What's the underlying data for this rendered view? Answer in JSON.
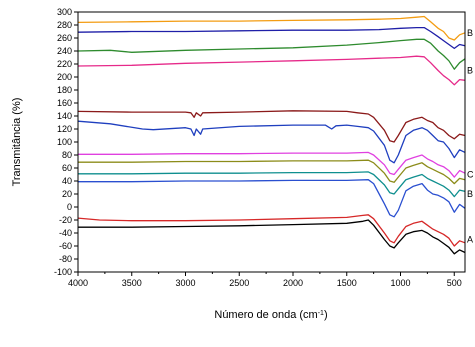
{
  "chart_data": {
    "type": "line",
    "title": "",
    "xlabel": "Número de onda (cm",
    "xlabel_sup": "-1",
    "xlabel_end": ")",
    "ylabel": "Transmitância (%)",
    "xlim": [
      4000,
      400
    ],
    "ylim": [
      -100,
      300
    ],
    "reversed_x": true,
    "grid": false,
    "x_ticks": [
      4000,
      3500,
      3000,
      2500,
      2000,
      1500,
      1000,
      500
    ],
    "y_ticks": [
      -100,
      -80,
      -60,
      -40,
      -20,
      0,
      20,
      40,
      60,
      80,
      100,
      120,
      140,
      160,
      180,
      200,
      220,
      240,
      260,
      280,
      300
    ],
    "edge_labels": [
      {
        "text": "B",
        "x": 400,
        "y": 268
      },
      {
        "text": "B",
        "x": 400,
        "y": 210
      },
      {
        "text": "C",
        "x": 400,
        "y": 50
      },
      {
        "text": "B",
        "x": 400,
        "y": 20
      },
      {
        "text": "A",
        "x": 400,
        "y": -50
      }
    ],
    "series": [
      {
        "color": "#f39c12",
        "points": [
          [
            4000,
            284
          ],
          [
            3500,
            285
          ],
          [
            3000,
            286
          ],
          [
            2500,
            286
          ],
          [
            2000,
            287
          ],
          [
            1500,
            288
          ],
          [
            1200,
            289
          ],
          [
            1000,
            290
          ],
          [
            850,
            292
          ],
          [
            780,
            293
          ],
          [
            720,
            285
          ],
          [
            650,
            275
          ],
          [
            600,
            270
          ],
          [
            550,
            260
          ],
          [
            500,
            257
          ],
          [
            450,
            265
          ],
          [
            400,
            268
          ]
        ]
      },
      {
        "color": "#1f1fa8",
        "points": [
          [
            4000,
            269
          ],
          [
            3500,
            270
          ],
          [
            3000,
            270
          ],
          [
            2500,
            271
          ],
          [
            2000,
            272
          ],
          [
            1500,
            272
          ],
          [
            1200,
            273
          ],
          [
            1000,
            275
          ],
          [
            850,
            276
          ],
          [
            780,
            276
          ],
          [
            720,
            270
          ],
          [
            650,
            262
          ],
          [
            600,
            256
          ],
          [
            550,
            250
          ],
          [
            500,
            244
          ],
          [
            450,
            250
          ],
          [
            400,
            248
          ]
        ]
      },
      {
        "color": "#2e8b2e",
        "points": [
          [
            4000,
            240
          ],
          [
            3700,
            241
          ],
          [
            3500,
            238
          ],
          [
            3000,
            241
          ],
          [
            2500,
            243
          ],
          [
            2000,
            245
          ],
          [
            1500,
            249
          ],
          [
            1200,
            253
          ],
          [
            1000,
            256
          ],
          [
            850,
            258
          ],
          [
            780,
            258
          ],
          [
            720,
            252
          ],
          [
            650,
            240
          ],
          [
            600,
            233
          ],
          [
            550,
            225
          ],
          [
            500,
            212
          ],
          [
            450,
            222
          ],
          [
            400,
            228
          ]
        ]
      },
      {
        "color": "#e62a8a",
        "points": [
          [
            4000,
            217
          ],
          [
            3500,
            218
          ],
          [
            3000,
            221
          ],
          [
            2500,
            223
          ],
          [
            2000,
            225
          ],
          [
            1500,
            227
          ],
          [
            1200,
            229
          ],
          [
            1000,
            230
          ],
          [
            850,
            232
          ],
          [
            780,
            231
          ],
          [
            720,
            222
          ],
          [
            650,
            210
          ],
          [
            600,
            202
          ],
          [
            550,
            196
          ],
          [
            500,
            188
          ],
          [
            450,
            196
          ],
          [
            400,
            195
          ]
        ]
      },
      {
        "color": "#8b1a1a",
        "points": [
          [
            4000,
            147
          ],
          [
            3500,
            146
          ],
          [
            3000,
            146
          ],
          [
            2950,
            145
          ],
          [
            2920,
            138
          ],
          [
            2900,
            145
          ],
          [
            2860,
            140
          ],
          [
            2840,
            145
          ],
          [
            2500,
            146
          ],
          [
            2000,
            148
          ],
          [
            1500,
            147
          ],
          [
            1400,
            145
          ],
          [
            1300,
            143
          ],
          [
            1250,
            138
          ],
          [
            1150,
            118
          ],
          [
            1100,
            102
          ],
          [
            1060,
            100
          ],
          [
            1020,
            110
          ],
          [
            950,
            130
          ],
          [
            880,
            135
          ],
          [
            800,
            138
          ],
          [
            750,
            133
          ],
          [
            700,
            130
          ],
          [
            650,
            122
          ],
          [
            600,
            118
          ],
          [
            550,
            110
          ],
          [
            500,
            105
          ],
          [
            450,
            112
          ],
          [
            400,
            110
          ]
        ]
      },
      {
        "color": "#1f3fbf",
        "points": [
          [
            4000,
            132
          ],
          [
            3700,
            128
          ],
          [
            3400,
            120
          ],
          [
            3300,
            119
          ],
          [
            3000,
            122
          ],
          [
            2950,
            120
          ],
          [
            2920,
            110
          ],
          [
            2900,
            120
          ],
          [
            2860,
            112
          ],
          [
            2840,
            120
          ],
          [
            2500,
            124
          ],
          [
            2000,
            126
          ],
          [
            1700,
            126
          ],
          [
            1640,
            120
          ],
          [
            1600,
            125
          ],
          [
            1500,
            126
          ],
          [
            1400,
            124
          ],
          [
            1300,
            122
          ],
          [
            1250,
            117
          ],
          [
            1150,
            95
          ],
          [
            1100,
            72
          ],
          [
            1060,
            68
          ],
          [
            1020,
            80
          ],
          [
            950,
            110
          ],
          [
            880,
            118
          ],
          [
            800,
            122
          ],
          [
            750,
            118
          ],
          [
            700,
            110
          ],
          [
            650,
            102
          ],
          [
            600,
            100
          ],
          [
            550,
            90
          ],
          [
            500,
            76
          ],
          [
            450,
            88
          ],
          [
            400,
            84
          ]
        ]
      },
      {
        "color": "#e040e0",
        "points": [
          [
            4000,
            81
          ],
          [
            3500,
            81
          ],
          [
            3000,
            82
          ],
          [
            2500,
            82
          ],
          [
            2000,
            83
          ],
          [
            1500,
            83
          ],
          [
            1300,
            84
          ],
          [
            1250,
            80
          ],
          [
            1150,
            65
          ],
          [
            1100,
            52
          ],
          [
            1060,
            50
          ],
          [
            1020,
            58
          ],
          [
            950,
            72
          ],
          [
            880,
            76
          ],
          [
            800,
            80
          ],
          [
            750,
            74
          ],
          [
            700,
            70
          ],
          [
            650,
            65
          ],
          [
            600,
            62
          ],
          [
            550,
            56
          ],
          [
            500,
            46
          ],
          [
            450,
            56
          ],
          [
            400,
            52
          ]
        ]
      },
      {
        "color": "#8c8c1a",
        "points": [
          [
            4000,
            69
          ],
          [
            3500,
            69
          ],
          [
            3000,
            70
          ],
          [
            2500,
            70
          ],
          [
            2000,
            71
          ],
          [
            1500,
            71
          ],
          [
            1300,
            72
          ],
          [
            1250,
            68
          ],
          [
            1150,
            52
          ],
          [
            1100,
            40
          ],
          [
            1060,
            38
          ],
          [
            1020,
            46
          ],
          [
            950,
            60
          ],
          [
            880,
            64
          ],
          [
            800,
            68
          ],
          [
            750,
            62
          ],
          [
            700,
            58
          ],
          [
            650,
            54
          ],
          [
            600,
            50
          ],
          [
            550,
            44
          ],
          [
            500,
            36
          ],
          [
            450,
            44
          ],
          [
            400,
            42
          ]
        ]
      },
      {
        "color": "#0f8f8f",
        "points": [
          [
            4000,
            51
          ],
          [
            3500,
            51
          ],
          [
            3000,
            52
          ],
          [
            2500,
            52
          ],
          [
            2000,
            53
          ],
          [
            1500,
            53
          ],
          [
            1300,
            54
          ],
          [
            1250,
            50
          ],
          [
            1150,
            34
          ],
          [
            1100,
            22
          ],
          [
            1060,
            20
          ],
          [
            1020,
            28
          ],
          [
            950,
            42
          ],
          [
            880,
            46
          ],
          [
            800,
            50
          ],
          [
            750,
            44
          ],
          [
            700,
            40
          ],
          [
            650,
            36
          ],
          [
            600,
            32
          ],
          [
            550,
            26
          ],
          [
            500,
            16
          ],
          [
            450,
            26
          ],
          [
            400,
            24
          ]
        ]
      },
      {
        "color": "#2a4fd0",
        "points": [
          [
            4000,
            39
          ],
          [
            3500,
            39
          ],
          [
            3000,
            40
          ],
          [
            2500,
            40
          ],
          [
            2000,
            41
          ],
          [
            1500,
            41
          ],
          [
            1300,
            42
          ],
          [
            1250,
            36
          ],
          [
            1150,
            5
          ],
          [
            1100,
            -12
          ],
          [
            1060,
            -15
          ],
          [
            1020,
            -5
          ],
          [
            950,
            25
          ],
          [
            880,
            32
          ],
          [
            800,
            36
          ],
          [
            750,
            26
          ],
          [
            700,
            20
          ],
          [
            650,
            18
          ],
          [
            600,
            14
          ],
          [
            550,
            8
          ],
          [
            500,
            -8
          ],
          [
            450,
            4
          ],
          [
            400,
            -2
          ]
        ]
      },
      {
        "color": "#d62828",
        "points": [
          [
            4000,
            -17
          ],
          [
            3800,
            -20
          ],
          [
            3500,
            -21
          ],
          [
            3000,
            -21
          ],
          [
            2500,
            -20
          ],
          [
            2000,
            -18
          ],
          [
            1500,
            -16
          ],
          [
            1350,
            -13
          ],
          [
            1300,
            -12
          ],
          [
            1250,
            -18
          ],
          [
            1150,
            -40
          ],
          [
            1100,
            -52
          ],
          [
            1060,
            -55
          ],
          [
            1020,
            -45
          ],
          [
            950,
            -30
          ],
          [
            880,
            -25
          ],
          [
            800,
            -22
          ],
          [
            750,
            -28
          ],
          [
            700,
            -34
          ],
          [
            650,
            -38
          ],
          [
            600,
            -42
          ],
          [
            550,
            -48
          ],
          [
            500,
            -60
          ],
          [
            450,
            -52
          ],
          [
            400,
            -55
          ]
        ]
      },
      {
        "color": "#000000",
        "points": [
          [
            4000,
            -31
          ],
          [
            3500,
            -31
          ],
          [
            3000,
            -30
          ],
          [
            2500,
            -29
          ],
          [
            2000,
            -27
          ],
          [
            1500,
            -25
          ],
          [
            1350,
            -22
          ],
          [
            1300,
            -20
          ],
          [
            1250,
            -28
          ],
          [
            1150,
            -50
          ],
          [
            1100,
            -60
          ],
          [
            1060,
            -63
          ],
          [
            1020,
            -55
          ],
          [
            950,
            -42
          ],
          [
            880,
            -38
          ],
          [
            800,
            -36
          ],
          [
            750,
            -40
          ],
          [
            700,
            -46
          ],
          [
            650,
            -50
          ],
          [
            600,
            -56
          ],
          [
            550,
            -62
          ],
          [
            500,
            -72
          ],
          [
            450,
            -66
          ],
          [
            400,
            -70
          ]
        ]
      }
    ]
  }
}
